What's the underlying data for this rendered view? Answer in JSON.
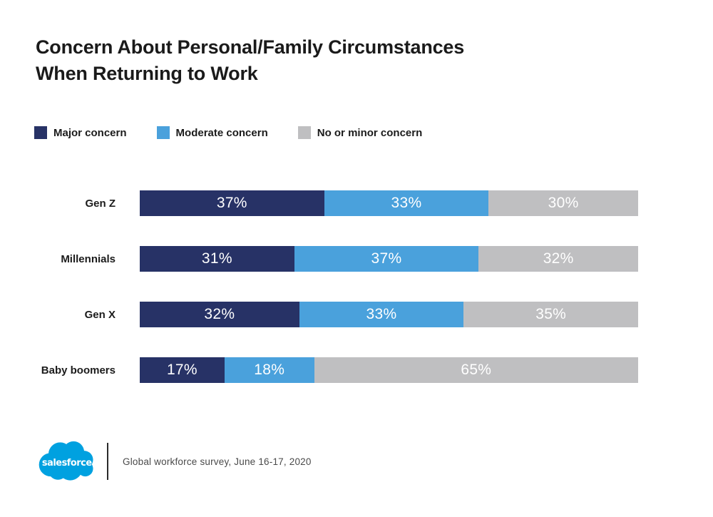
{
  "title": {
    "line1": "Concern About Personal/Family Circumstances",
    "line2": "When Returning to Work"
  },
  "chart_data": {
    "type": "bar",
    "orientation": "horizontal-stacked",
    "title": "Concern About Personal/Family Circumstances When Returning to Work",
    "categories": [
      "Gen Z",
      "Millennials",
      "Gen X",
      "Baby boomers"
    ],
    "series": [
      {
        "name": "Major concern",
        "color": "#273266",
        "values": [
          37,
          31,
          32,
          17
        ]
      },
      {
        "name": "Moderate concern",
        "color": "#4AA1DC",
        "values": [
          33,
          37,
          33,
          18
        ]
      },
      {
        "name": "No or minor concern",
        "color": "#BFBFC1",
        "values": [
          30,
          32,
          35,
          65
        ]
      }
    ],
    "value_suffix": "%",
    "value_label_color": "#ffffff",
    "xlim": [
      0,
      100
    ],
    "grid": false,
    "legend_position": "top"
  },
  "footer": {
    "logo_text": "salesforce",
    "logo_color": "#00A1E0",
    "source": "Global workforce survey, June 16-17, 2020"
  }
}
